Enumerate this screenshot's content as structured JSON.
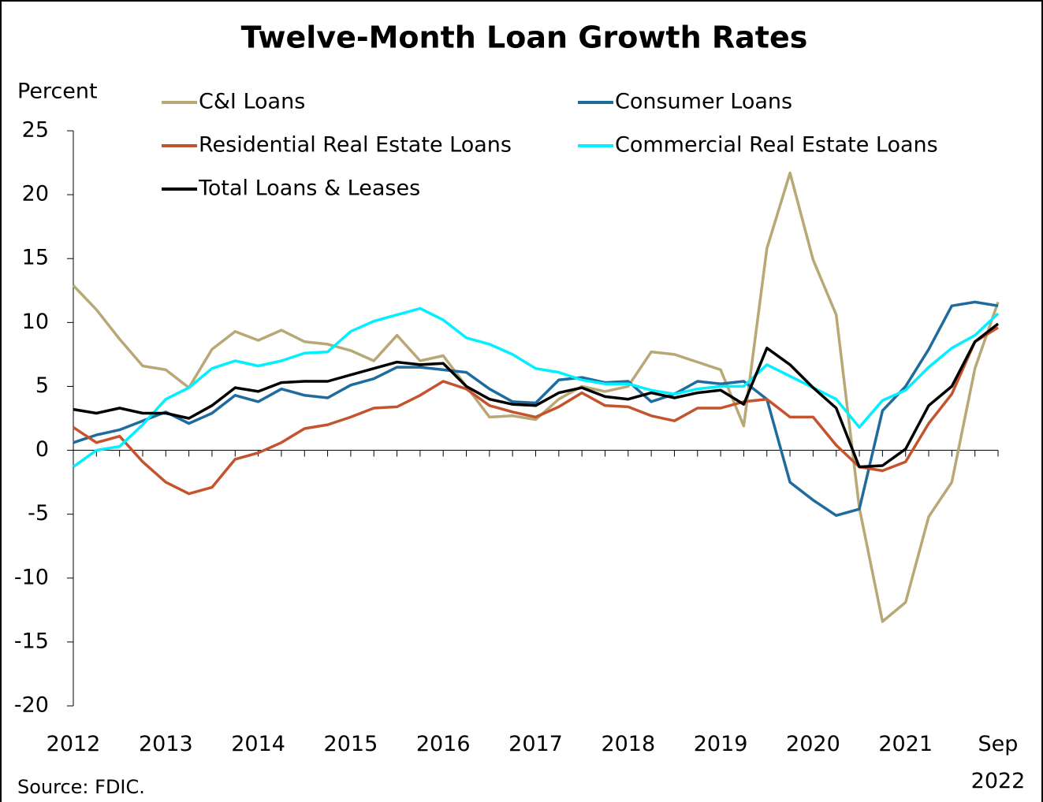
{
  "chart_data": {
    "type": "line",
    "title": "Twelve-Month Loan Growth Rates",
    "y_label": "Percent",
    "source": "Source: FDIC.",
    "categories": [
      "2012",
      null,
      null,
      null,
      "2013",
      null,
      null,
      null,
      "2014",
      null,
      null,
      null,
      "2015",
      null,
      null,
      null,
      "2016",
      null,
      null,
      null,
      "2017",
      null,
      null,
      null,
      "2018",
      null,
      null,
      null,
      "2019",
      null,
      null,
      null,
      "2020",
      null,
      null,
      null,
      "2021",
      null,
      null,
      null,
      "Sep 2022"
    ],
    "ylim": [
      -20,
      25
    ],
    "yticks": [
      -20,
      -15,
      -10,
      -5,
      0,
      5,
      10,
      15,
      20,
      25
    ],
    "series": [
      {
        "name": "C&I Loans",
        "color": "#b8a875",
        "values": [
          12.9,
          11.0,
          8.7,
          6.6,
          6.3,
          4.9,
          7.9,
          9.3,
          8.6,
          9.4,
          8.5,
          8.3,
          7.8,
          7.0,
          9.0,
          7.0,
          7.4,
          5.0,
          2.6,
          2.7,
          2.4,
          4.0,
          5.0,
          4.6,
          5.0,
          7.7,
          7.5,
          6.9,
          6.3,
          1.9,
          15.8,
          21.7,
          14.9,
          10.6,
          -4.5,
          -13.4,
          -11.9,
          -5.2,
          -2.5,
          6.4,
          11.6
        ]
      },
      {
        "name": "Consumer Loans",
        "color": "#1f6b9e",
        "values": [
          0.6,
          1.2,
          1.6,
          2.3,
          3.0,
          2.1,
          2.9,
          4.3,
          3.8,
          4.8,
          4.3,
          4.1,
          5.1,
          5.6,
          6.5,
          6.5,
          6.3,
          6.1,
          4.8,
          3.8,
          3.7,
          5.5,
          5.7,
          5.3,
          5.4,
          3.8,
          4.4,
          5.4,
          5.2,
          5.4,
          4.0,
          -2.5,
          -3.9,
          -5.1,
          -4.6,
          3.1,
          5.0,
          7.9,
          11.3,
          11.6,
          11.3
        ]
      },
      {
        "name": "Residential Real Estate Loans",
        "color": "#c4542d",
        "values": [
          1.8,
          0.6,
          1.1,
          -0.9,
          -2.5,
          -3.4,
          -2.9,
          -0.7,
          -0.2,
          0.6,
          1.7,
          2.0,
          2.6,
          3.3,
          3.4,
          4.3,
          5.4,
          4.8,
          3.5,
          3.0,
          2.6,
          3.4,
          4.5,
          3.5,
          3.4,
          2.7,
          2.3,
          3.3,
          3.3,
          3.8,
          4.0,
          2.6,
          2.6,
          0.4,
          -1.3,
          -1.6,
          -0.9,
          2.1,
          4.4,
          8.5,
          9.6
        ]
      },
      {
        "name": "Commercial Real Estate Loans",
        "color": "#00f0ff",
        "values": [
          -1.3,
          0.0,
          0.3,
          2.0,
          4.0,
          4.9,
          6.4,
          7.0,
          6.6,
          7.0,
          7.6,
          7.7,
          9.3,
          10.1,
          10.6,
          11.1,
          10.2,
          8.8,
          8.3,
          7.5,
          6.4,
          6.1,
          5.5,
          5.2,
          5.2,
          4.7,
          4.4,
          4.8,
          5.0,
          5.0,
          6.7,
          5.8,
          4.9,
          4.0,
          1.8,
          3.9,
          4.7,
          6.5,
          8.0,
          9.0,
          10.7
        ]
      },
      {
        "name": "Total Loans & Leases",
        "color": "#000000",
        "values": [
          3.2,
          2.9,
          3.3,
          2.9,
          2.9,
          2.5,
          3.5,
          4.9,
          4.6,
          5.3,
          5.4,
          5.4,
          5.9,
          6.4,
          6.9,
          6.7,
          6.8,
          5.0,
          4.0,
          3.6,
          3.5,
          4.5,
          4.9,
          4.2,
          4.0,
          4.5,
          4.1,
          4.5,
          4.7,
          3.6,
          8.0,
          6.7,
          4.9,
          3.3,
          -1.3,
          -1.2,
          0.1,
          3.5,
          5.0,
          8.5,
          9.9
        ]
      }
    ]
  }
}
